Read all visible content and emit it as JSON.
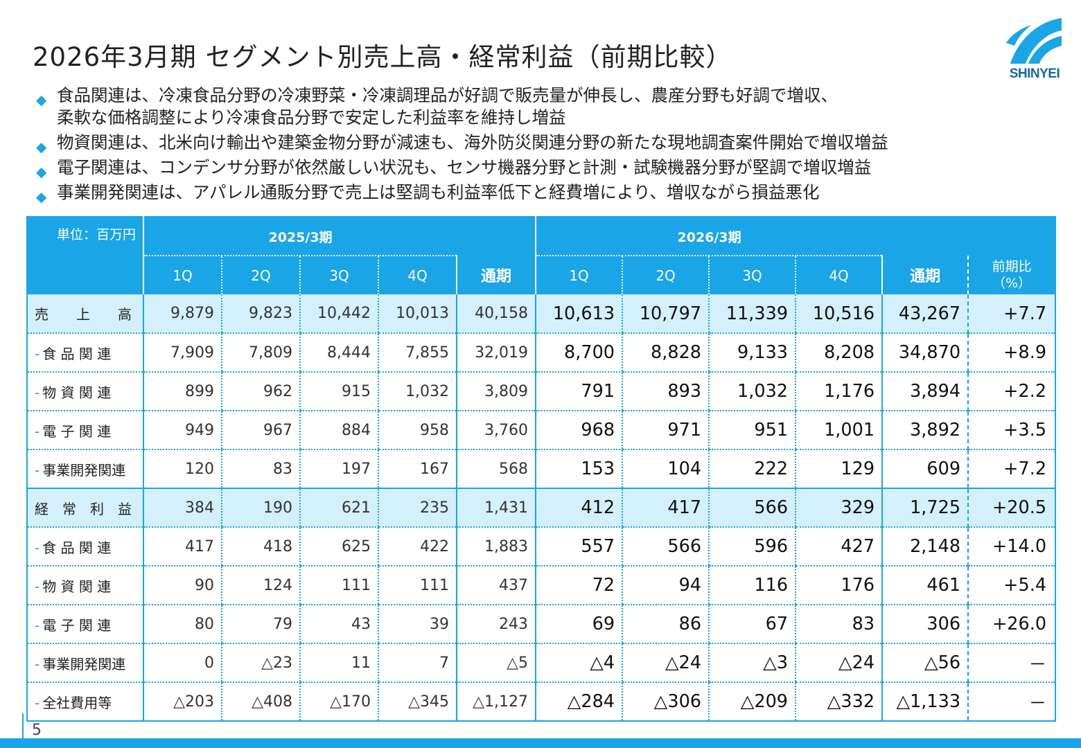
{
  "title": "2026年3月期 セグメント別売上高・経常利益（前期比較）",
  "brand": {
    "name": "SHINYEI",
    "color": "#1aa5e6"
  },
  "bullets": [
    {
      "lines": [
        "食品関連は、冷凍食品分野の冷凍野菜・冷凍調理品が好調で販売量が伸長し、農産分野も好調で増収、",
        "柔軟な価格調整により冷凍食品分野で安定した利益率を維持し増益"
      ]
    },
    {
      "lines": [
        "物資関連は、北米向け輸出や建築金物分野が減速も、海外防災関連分野の新たな現地調査案件開始で増収増益"
      ]
    },
    {
      "lines": [
        "電子関連は、コンデンサ分野が依然厳しい状況も、センサ機器分野と計測・試験機器分野が堅調で増収増益"
      ]
    },
    {
      "lines": [
        "事業開発関連は、アパレル通販分野で売上は堅調も利益率低下と経費増により、増収ながら損益悪化"
      ]
    }
  ],
  "table": {
    "unit": "単位：百万円",
    "year_prev": "2025/3期",
    "year_cur": "2026/3期",
    "cols": [
      "1Q",
      "2Q",
      "3Q",
      "4Q",
      "通期"
    ],
    "ratio_header": [
      "前期比",
      "（%）"
    ],
    "rows": [
      {
        "label": "売　　上　　高",
        "total": true,
        "prev": [
          "9,879",
          "9,823",
          "10,442",
          "10,013",
          "40,158"
        ],
        "cur": [
          "10,613",
          "10,797",
          "11,339",
          "10,516",
          "43,267"
        ],
        "ratio": "+7.7"
      },
      {
        "label": "食 品 関 連",
        "prev": [
          "7,909",
          "7,809",
          "8,444",
          "7,855",
          "32,019"
        ],
        "cur": [
          "8,700",
          "8,828",
          "9,133",
          "8,208",
          "34,870"
        ],
        "ratio": "+8.9"
      },
      {
        "label": "物 資 関 連",
        "prev": [
          "899",
          "962",
          "915",
          "1,032",
          "3,809"
        ],
        "cur": [
          "791",
          "893",
          "1,032",
          "1,176",
          "3,894"
        ],
        "ratio": "+2.2"
      },
      {
        "label": "電 子 関 連",
        "prev": [
          "949",
          "967",
          "884",
          "958",
          "3,760"
        ],
        "cur": [
          "968",
          "971",
          "951",
          "1,001",
          "3,892"
        ],
        "ratio": "+3.5"
      },
      {
        "label": "事業開発関連",
        "section_end": true,
        "prev": [
          "120",
          "83",
          "197",
          "167",
          "568"
        ],
        "cur": [
          "153",
          "104",
          "222",
          "129",
          "609"
        ],
        "ratio": "+7.2"
      },
      {
        "label": "経　常　利　益",
        "total": true,
        "prev": [
          "384",
          "190",
          "621",
          "235",
          "1,431"
        ],
        "cur": [
          "412",
          "417",
          "566",
          "329",
          "1,725"
        ],
        "ratio": "+20.5"
      },
      {
        "label": "食 品 関 連",
        "prev": [
          "417",
          "418",
          "625",
          "422",
          "1,883"
        ],
        "cur": [
          "557",
          "566",
          "596",
          "427",
          "2,148"
        ],
        "ratio": "+14.0"
      },
      {
        "label": "物 資 関 連",
        "prev": [
          "90",
          "124",
          "111",
          "111",
          "437"
        ],
        "cur": [
          "72",
          "94",
          "116",
          "176",
          "461"
        ],
        "ratio": "+5.4"
      },
      {
        "label": "電 子 関 連",
        "prev": [
          "80",
          "79",
          "43",
          "39",
          "243"
        ],
        "cur": [
          "69",
          "86",
          "67",
          "83",
          "306"
        ],
        "ratio": "+26.0"
      },
      {
        "label": "事業開発関連",
        "prev": [
          "0",
          "△23",
          "11",
          "7",
          "△5"
        ],
        "cur": [
          "△4",
          "△24",
          "△3",
          "△24",
          "△56"
        ],
        "ratio": "－"
      },
      {
        "label": "全社費用等",
        "prev": [
          "△203",
          "△408",
          "△170",
          "△345",
          "△1,127"
        ],
        "cur": [
          "△284",
          "△306",
          "△209",
          "△332",
          "△1,133"
        ],
        "ratio": "－"
      }
    ]
  },
  "page_number": "5"
}
